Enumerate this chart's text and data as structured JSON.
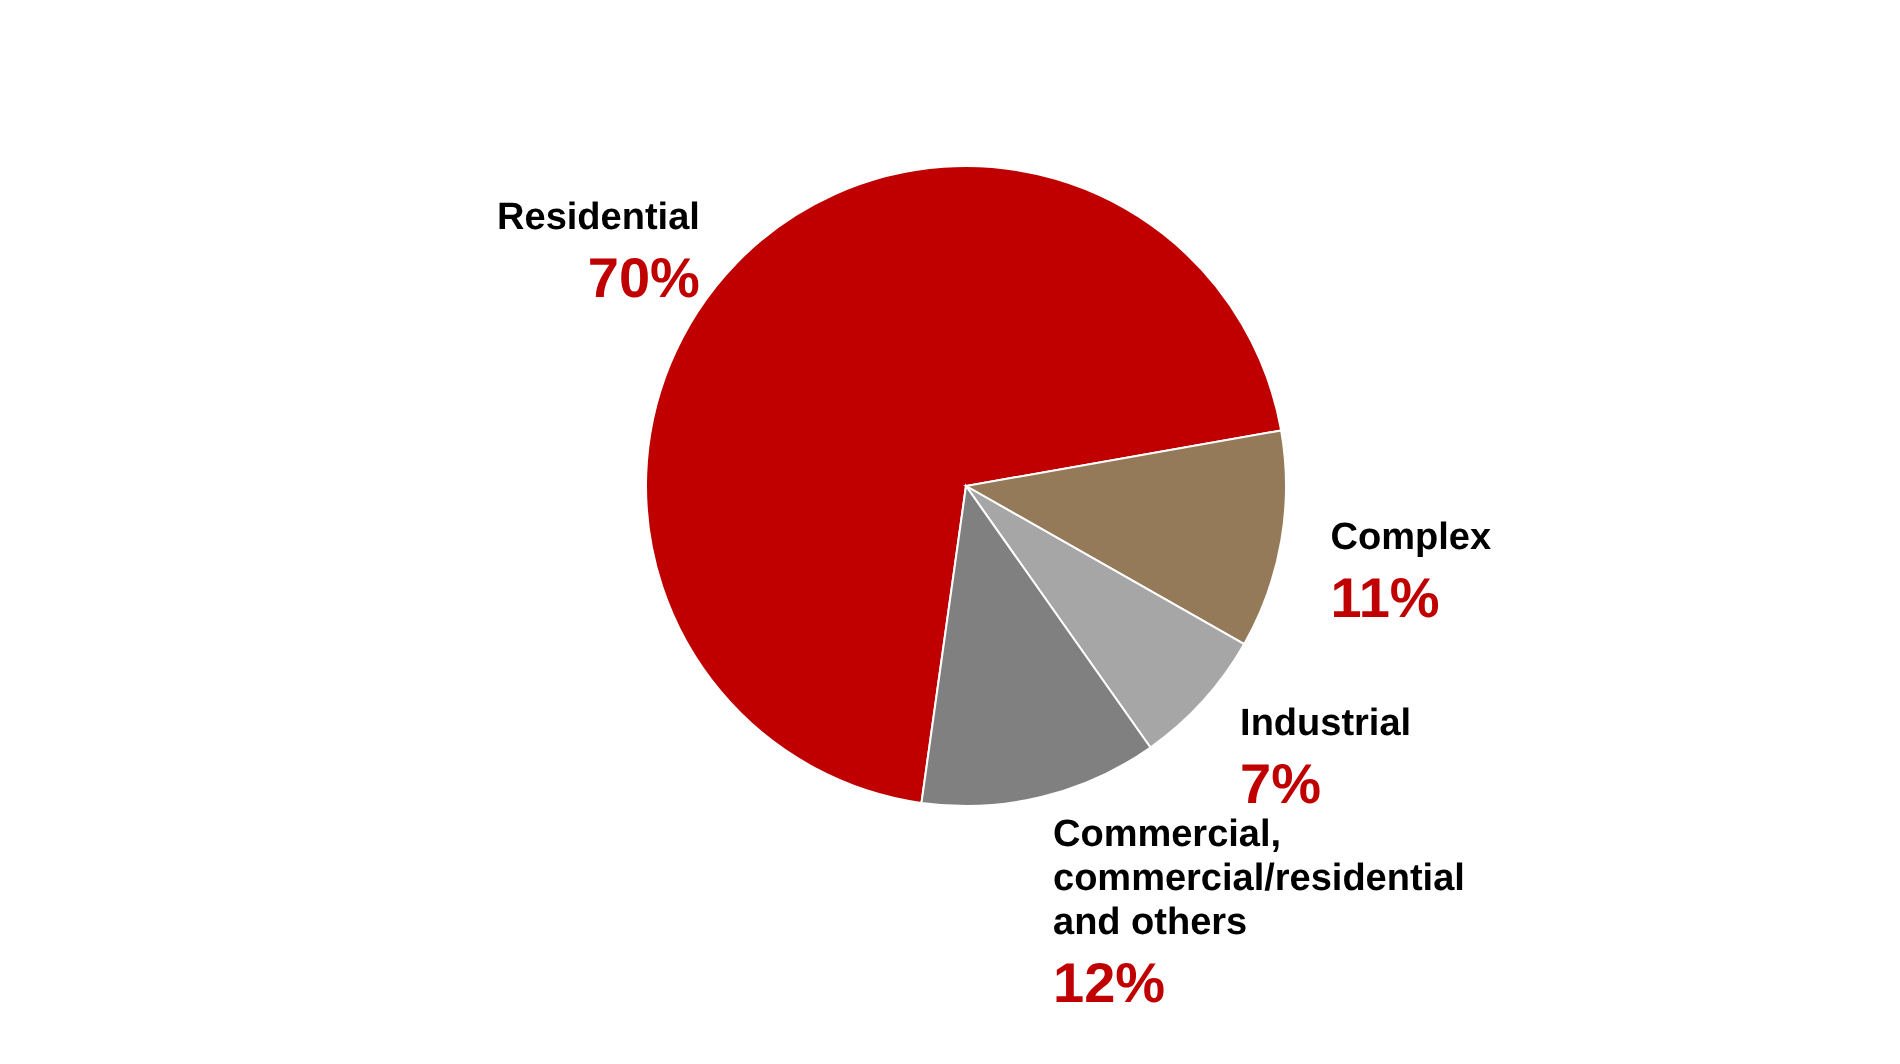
{
  "chart_data": {
    "type": "pie",
    "categories": [
      "Residential",
      "Complex",
      "Industrial",
      "Commercial, commercial/residential and others"
    ],
    "values": [
      70,
      11,
      7,
      12
    ],
    "colors": [
      "#c00000",
      "#957a5a",
      "#a6a6a6",
      "#808080"
    ],
    "value_labels": [
      "70%",
      "11%",
      "7%",
      "12%"
    ]
  }
}
